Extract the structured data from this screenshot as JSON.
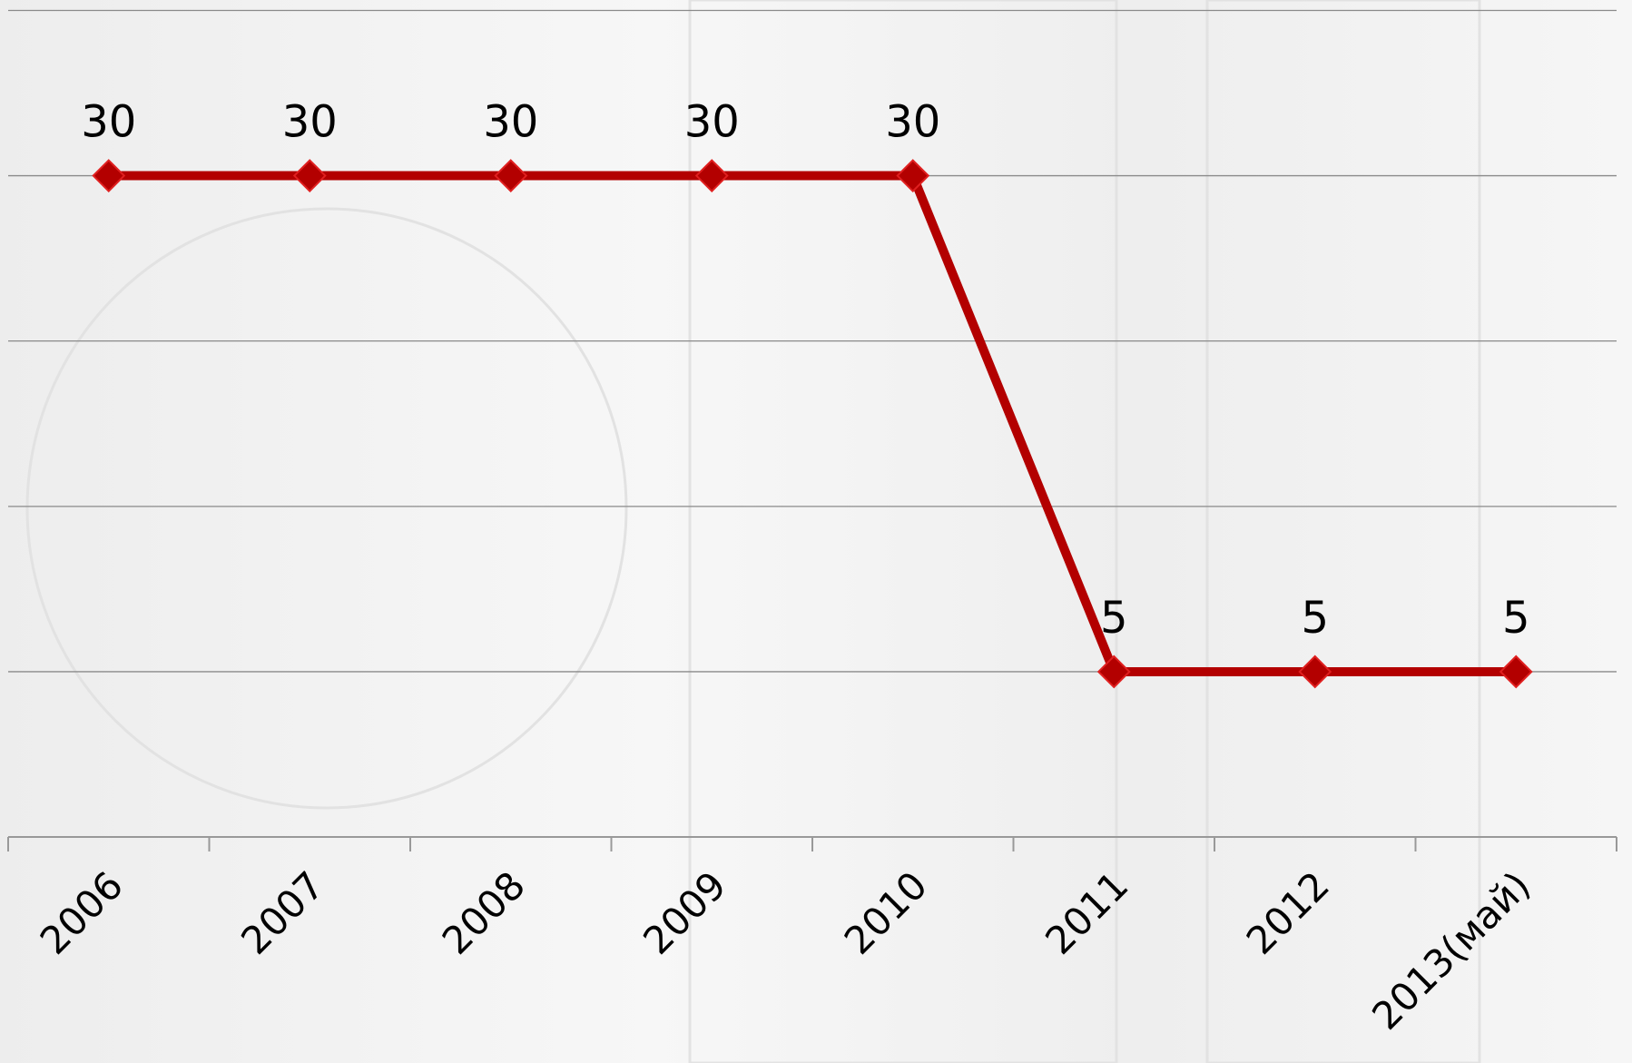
{
  "chart_data": {
    "type": "line",
    "categories": [
      "2006",
      "2007",
      "2008",
      "2009",
      "2010",
      "2011",
      "2012",
      "2013(май)"
    ],
    "series": [
      {
        "color": "#b30000",
        "values": [
          30,
          30,
          30,
          30,
          30,
          5,
          5,
          5
        ]
      }
    ],
    "ylim": [
      -3.33,
      38.33
    ],
    "yticks": [
      -3.33,
      5,
      13.33,
      21.67,
      30,
      38.33
    ],
    "grid": true
  }
}
